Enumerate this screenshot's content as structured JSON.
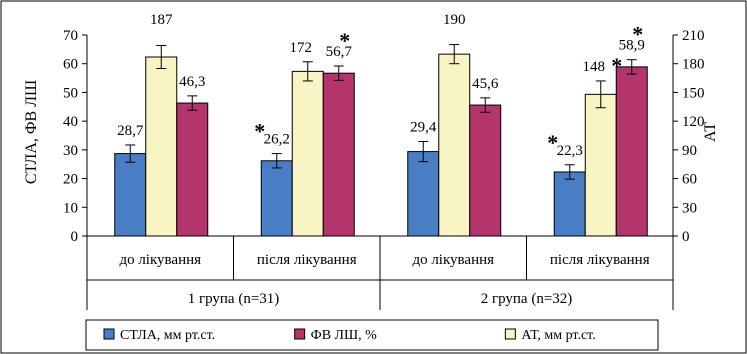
{
  "chart_data": {
    "type": "bar",
    "ylabel_left": "СТЛА,  ФВ ЛШ",
    "ylabel_right": "АТ",
    "ylim_left": [
      0,
      70
    ],
    "yticks_left": [
      0,
      10,
      20,
      30,
      40,
      50,
      60,
      70
    ],
    "ylim_right": [
      0,
      210
    ],
    "yticks_right": [
      0,
      30,
      60,
      90,
      120,
      150,
      180,
      210
    ],
    "groups": [
      {
        "label": "1 група (n=31)",
        "categories": [
          "до лікування",
          "після лікування"
        ]
      },
      {
        "label": "2 група (n=32)",
        "categories": [
          "до лікування",
          "після лікування"
        ]
      }
    ],
    "categories": [
      "до лікування",
      "після лікування",
      "до лікування",
      "після лікування"
    ],
    "series": [
      {
        "name": "СТЛА, мм рт.ст.",
        "color": "#4a7ec4",
        "axis": "left",
        "values": [
          28.7,
          26.2,
          29.4,
          22.3
        ],
        "labels": [
          "28,7",
          "26,2",
          "29,4",
          "22,3"
        ],
        "errors": [
          3,
          2.5,
          3.5,
          2.5
        ],
        "significant": [
          false,
          true,
          false,
          true
        ]
      },
      {
        "name": "АТ, мм рт.ст.",
        "color": "#f8f4c4",
        "axis": "right",
        "values": [
          187,
          172,
          190,
          148
        ],
        "labels": [
          "187",
          "172",
          "190",
          "148"
        ],
        "errors": [
          12,
          10,
          10,
          14
        ],
        "significant": [
          false,
          false,
          false,
          true
        ]
      },
      {
        "name": "ФВ ЛШ, %",
        "color": "#b4346c",
        "axis": "left",
        "values": [
          46.3,
          56.7,
          45.6,
          58.9
        ],
        "labels": [
          "46,3",
          "56,7",
          "45,6",
          "58,9"
        ],
        "errors": [
          2.5,
          2.5,
          2.5,
          2.5
        ],
        "significant": [
          false,
          true,
          false,
          true
        ]
      }
    ],
    "legend_order": [
      "СТЛА, мм рт.ст.",
      "ФВ ЛШ, %",
      "АТ, мм рт.ст."
    ],
    "legend_position": "bottom",
    "grid": false,
    "significance_marker": "*"
  }
}
